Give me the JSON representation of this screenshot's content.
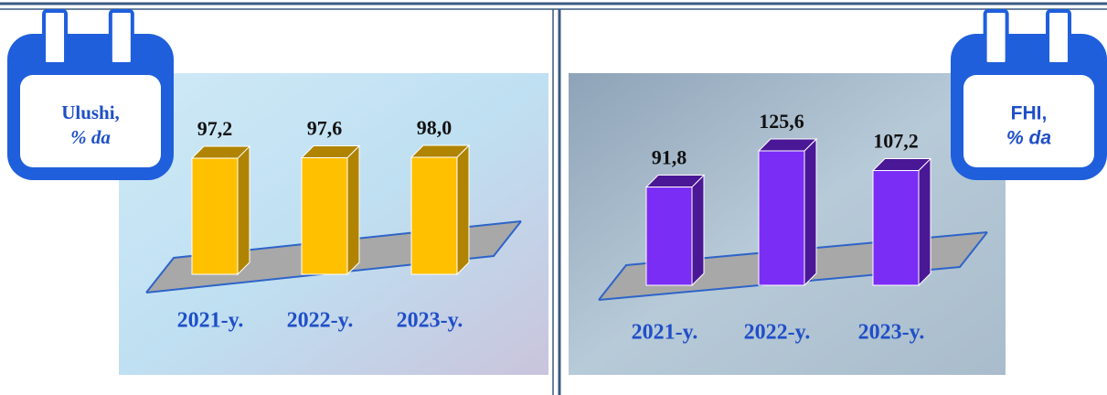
{
  "chart_data": [
    {
      "type": "bar3d",
      "title": "Ulushi,",
      "subtitle": "% da",
      "categories": [
        "2021-y.",
        "2022-y.",
        "2023-y."
      ],
      "values": [
        97.2,
        97.6,
        98.0
      ],
      "value_labels": [
        "97,2",
        "97,6",
        "98,0"
      ],
      "color": "#ffc000",
      "side_color": "#b08400"
    },
    {
      "type": "bar3d",
      "title": "FHI,",
      "subtitle": "% da",
      "categories": [
        "2021-y.",
        "2022-y.",
        "2023-y."
      ],
      "values": [
        91.8,
        125.6,
        107.2
      ],
      "value_labels": [
        "91,8",
        "125,6",
        "107,2"
      ],
      "color": "#7a2df5",
      "side_color": "#4a1796"
    }
  ]
}
